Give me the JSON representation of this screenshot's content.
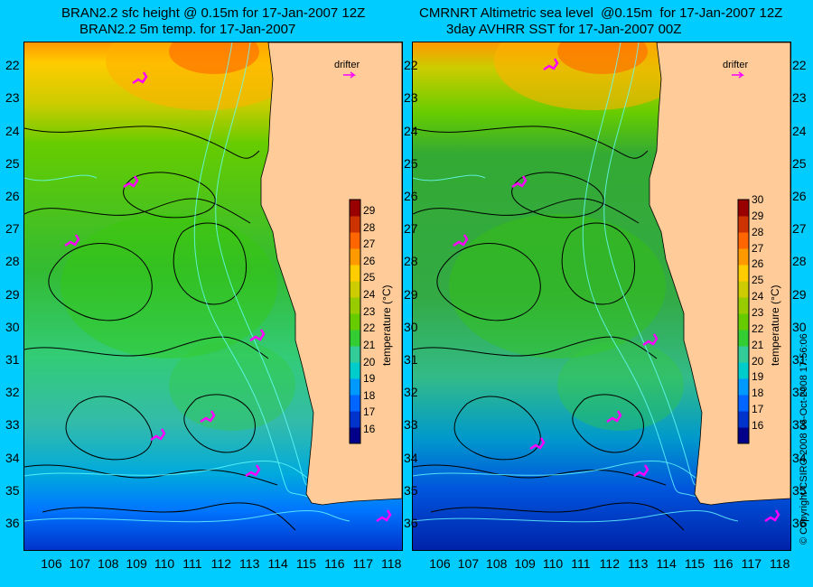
{
  "panels": [
    {
      "title_line1": "BRAN2.2 sfc height @ 0.15m for 17-Jan-2007 12Z",
      "title_line2": "BRAN2.2 5m temp. for 17-Jan-2007",
      "style": "model"
    },
    {
      "title_line1": "CMRNRT Altimetric sea level  @0.15m  for 17-Jan-2007 12Z",
      "title_line2": "3day AVHRR SST for 17-Jan-2007 00Z",
      "style": "satellite"
    }
  ],
  "latitudes": [
    "22",
    "23",
    "24",
    "25",
    "26",
    "27",
    "28",
    "29",
    "30",
    "31",
    "32",
    "33",
    "34",
    "35",
    "36"
  ],
  "longitudes": [
    "106",
    "107",
    "108",
    "109",
    "110",
    "111",
    "112",
    "113",
    "114",
    "115",
    "116",
    "117",
    "118"
  ],
  "legend": {
    "drifter_label": "drifter"
  },
  "colorbar": {
    "title": "temperature (°C)",
    "ticks_left": [
      "29",
      "28",
      "27",
      "26",
      "25",
      "24",
      "23",
      "22",
      "21",
      "20",
      "19",
      "18",
      "17",
      "16"
    ],
    "ticks_right": [
      "30",
      "29",
      "28",
      "27",
      "26",
      "25",
      "24",
      "23",
      "22",
      "21",
      "20",
      "19",
      "18",
      "17",
      "16"
    ],
    "colors": [
      "#00008B",
      "#0033CC",
      "#0066FF",
      "#0099FF",
      "#00CCCC",
      "#33CC99",
      "#33CC33",
      "#66CC00",
      "#99CC00",
      "#CCCC00",
      "#FFCC00",
      "#FF9900",
      "#FF6600",
      "#CC3300",
      "#990000"
    ]
  },
  "land_color": "#FFCC99",
  "copyright": "© Copyright CSIRO 2008     06-Oct-2008 17:56:06"
}
